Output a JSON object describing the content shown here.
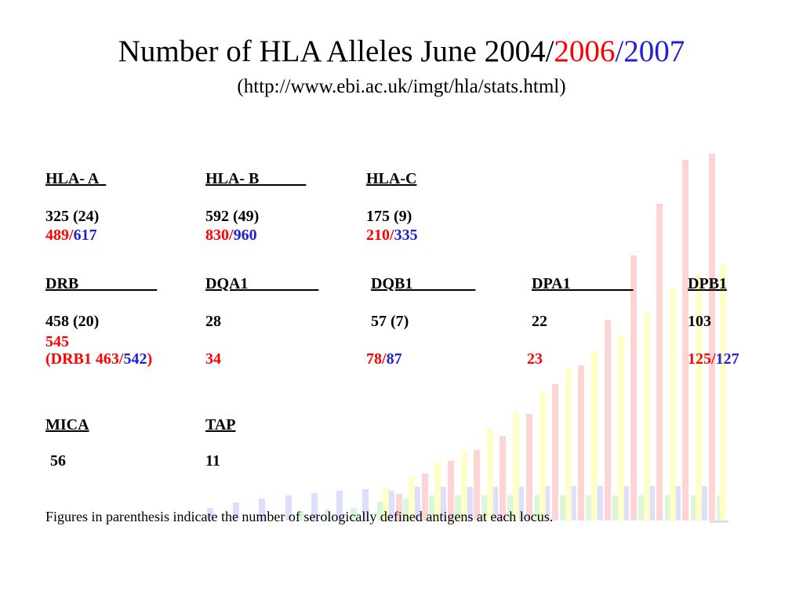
{
  "title": {
    "main": "Number of HLA Alleles June 2004/",
    "y2006": "2006",
    "slash": "/",
    "y2007": "2007"
  },
  "subtitle": "(http://www.ebi.ac.uk/imgt/hla/stats.html)",
  "colors": {
    "red": "#ff0000",
    "blue": "#2020d8",
    "bar_red": "#ffcccc",
    "bar_yellow": "#ffffc0",
    "bar_blue": "#d8d8ff",
    "bar_green": "#d6f5d6"
  },
  "row1": {
    "hla_a": {
      "header": "HLA- A  ",
      "count2004": "325  (24)",
      "count2006": "489/",
      "count2007": "617"
    },
    "hla_b": {
      "header": "HLA- B            ",
      "count2004": "592 (49)",
      "count2006": "830/",
      "count2007": "960"
    },
    "hla_c": {
      "header": "HLA-C",
      "count2004": "175  (9)",
      "count2006": "210/",
      "count2007": "335"
    }
  },
  "row2": {
    "drb": {
      "header": "DRB                    ",
      "count2004": "458  (20)",
      "count2006a": "545",
      "drb1_prefix": "(DRB1 463/",
      "drb1_2007": "542",
      "drb1_suffix": ")"
    },
    "dqa1": {
      "header": "DQA1                  ",
      "count2004": "28",
      "count2006": "34"
    },
    "dqb1": {
      "header": "DQB1                ",
      "count2004": "57  (7)",
      "count2006": "78/",
      "count2007": "87"
    },
    "dpa1": {
      "header": "DPA1                ",
      "count2004": "22",
      "count2006": "23"
    },
    "dpb1": {
      "header": "DPB1",
      "count2004": "103",
      "count2006": "125/",
      "count2007": "127"
    }
  },
  "row3": {
    "mica": {
      "header": "MICA",
      "count": "56"
    },
    "tap": {
      "header": "TAP",
      "count": "11"
    }
  },
  "footnote": "Figures in parenthesis indicate the number of serologically defined antigens at each locus."
}
